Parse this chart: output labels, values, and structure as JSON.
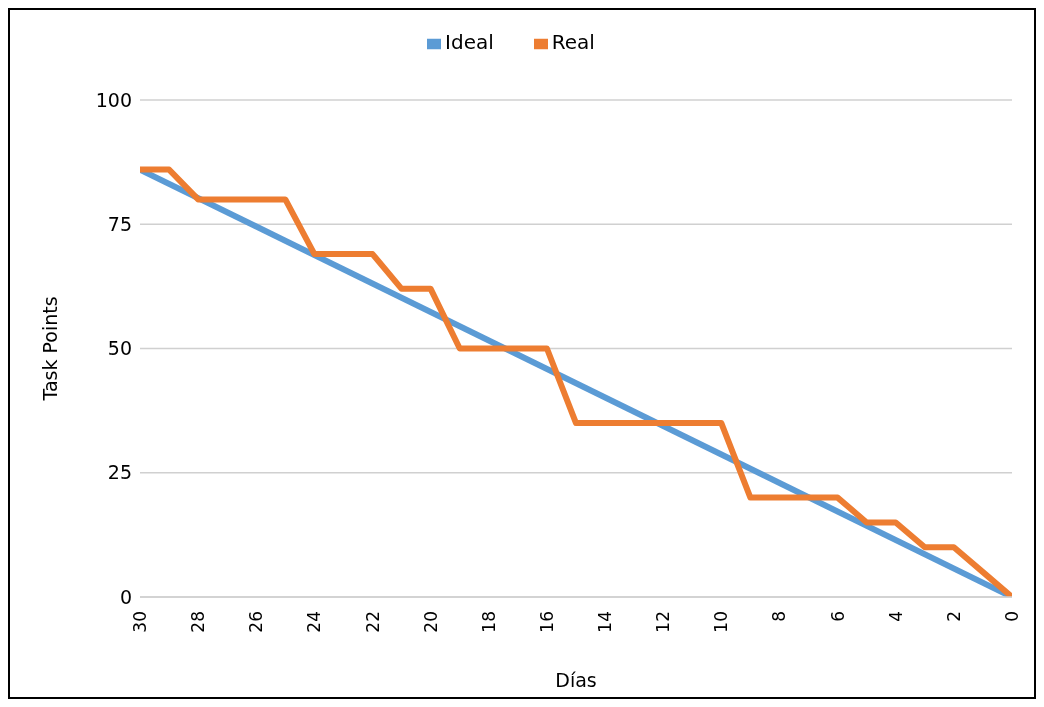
{
  "chart_data": {
    "type": "line",
    "xlabel": "Días",
    "ylabel": "Task Points",
    "xlim": [
      30,
      0
    ],
    "xticks": [
      30,
      28,
      26,
      24,
      22,
      20,
      18,
      16,
      14,
      12,
      10,
      8,
      6,
      4,
      2,
      0
    ],
    "ylim": [
      0,
      100
    ],
    "yticks": [
      0,
      25,
      50,
      75,
      100
    ],
    "grid": "y",
    "legend": "top",
    "marker": "none",
    "line_style": "solid",
    "series": [
      {
        "name": "Ideal",
        "color": "#5b9bd5",
        "x": [
          30,
          0
        ],
        "values": [
          86,
          0
        ]
      },
      {
        "name": "Real",
        "color": "#ed7d31",
        "x": [
          30,
          29,
          28,
          27,
          26,
          25,
          24,
          23,
          22,
          21,
          20,
          19,
          18,
          17,
          16,
          15,
          14,
          13,
          12,
          11,
          10,
          9,
          8,
          7,
          6,
          5,
          4,
          3,
          2,
          1,
          0
        ],
        "values": [
          86,
          86,
          80,
          80,
          80,
          80,
          69,
          69,
          69,
          62,
          62,
          50,
          50,
          50,
          50,
          35,
          35,
          35,
          35,
          35,
          35,
          20,
          20,
          20,
          20,
          15,
          15,
          10,
          10,
          5,
          0
        ]
      }
    ]
  }
}
